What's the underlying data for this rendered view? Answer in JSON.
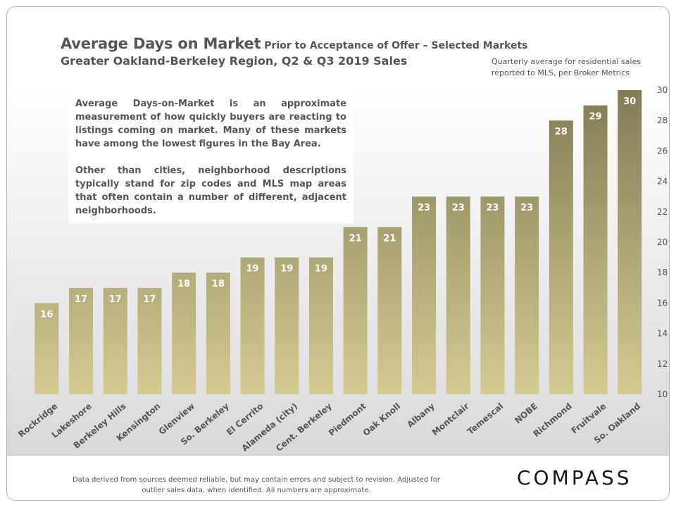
{
  "header": {
    "title_main": "Average Days on Market",
    "title_rest": " Prior to Acceptance of Offer – Selected Markets",
    "subtitle": "Greater Oakland-Berkeley  Region, Q2 & Q3 2019 Sales",
    "note": "Quarterly average for residential  sales reported to MLS, per Broker Metrics"
  },
  "textbox": {
    "p1": "Average Days-on-Market is an approximate measurement of how quickly buyers are reacting to listings coming on market. Many of these markets have among the lowest figures in the Bay Area.",
    "p2": "Other than cities, neighborhood descriptions typically stand for zip codes and MLS map areas that often contain a number of different, adjacent neighborhoods."
  },
  "footer": {
    "disclaimer": "Data derived from sources deemed reliable, but may contain errors and subject to revision. Adjusted for outlier sales data, when identified. All numbers are approximate.",
    "logo": "COMPASS"
  },
  "chart_data": {
    "type": "bar",
    "categories": [
      "Rockridge",
      "Lakeshore",
      "Berkeley Hills",
      "Kensington",
      "Glenview",
      "So. Berkeley",
      "El Cerrito",
      "Alameda (city)",
      "Cent. Berkeley",
      "Piedmont",
      "Oak Knoll",
      "Albany",
      "Montclair",
      "Temescal",
      "NOBE",
      "Richmond",
      "Fruitvale",
      "So. Oakland"
    ],
    "values": [
      16,
      17,
      17,
      17,
      18,
      18,
      19,
      19,
      19,
      21,
      21,
      23,
      23,
      23,
      23,
      28,
      29,
      30
    ],
    "ylim": [
      10,
      30
    ],
    "yticks": [
      10,
      12,
      14,
      16,
      18,
      20,
      22,
      24,
      26,
      28,
      30
    ],
    "y_axis_position": "right",
    "data_labels": true,
    "bar_color_top": "#837c55",
    "bar_color_bottom": "#d3cb90",
    "grid": false
  }
}
